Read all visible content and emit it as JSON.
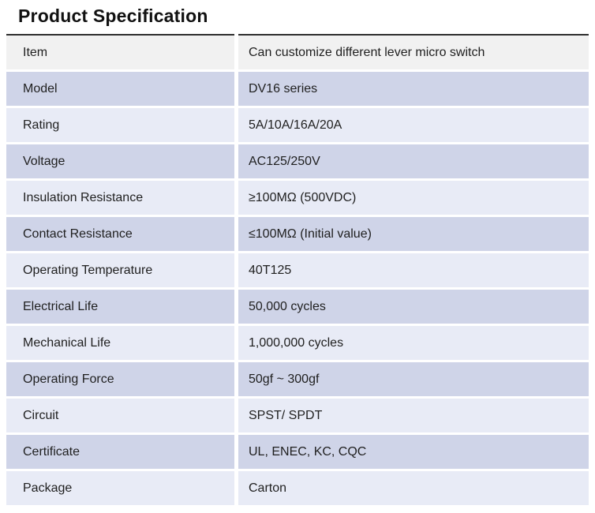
{
  "page": {
    "title": "Product Specification"
  },
  "table": {
    "rows": [
      {
        "label": "Item",
        "value": "Can customize different lever micro switch"
      },
      {
        "label": "Model",
        "value": "DV16 series"
      },
      {
        "label": "Rating",
        "value": "5A/10A/16A/20A"
      },
      {
        "label": "Voltage",
        "value": "AC125/250V"
      },
      {
        "label": "Insulation Resistance",
        "value": "≥100MΩ (500VDC)"
      },
      {
        "label": "Contact Resistance",
        "value": "≤100MΩ (Initial value)"
      },
      {
        "label": "Operating Temperature",
        "value": "40T125"
      },
      {
        "label": "Electrical Life",
        "value": "50,000 cycles"
      },
      {
        "label": "Mechanical Life",
        "value": "1,000,000 cycles"
      },
      {
        "label": "Operating Force",
        "value": "50gf ~ 300gf"
      },
      {
        "label": "Circuit",
        "value": "SPST/ SPDT"
      },
      {
        "label": "Certificate",
        "value": "UL, ENEC, KC, CQC"
      },
      {
        "label": "Package",
        "value": "Carton"
      }
    ]
  },
  "colors": {
    "page_bg": "#ffffff",
    "title_text": "#111111",
    "text": "#1f1f1f",
    "top_border": "#2e2e2e",
    "header_row_bg": "#f1f1f1",
    "band_dark": "#cfd4e8",
    "band_light": "#e8ebf6"
  }
}
